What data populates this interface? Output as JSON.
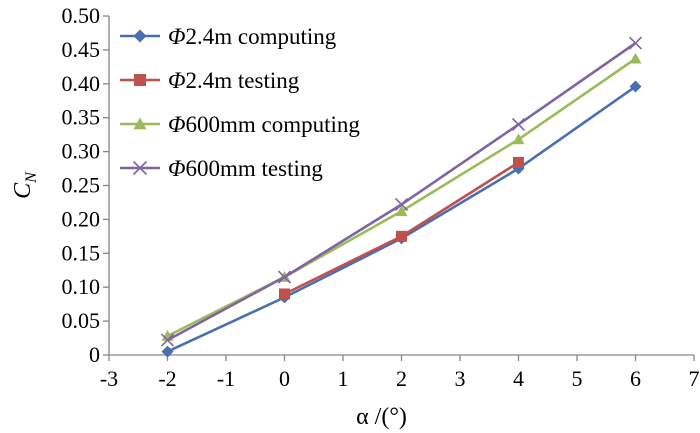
{
  "chart_data": {
    "type": "line",
    "xlabel": "α /(°)",
    "ylabel_main": "C",
    "ylabel_sub": "N",
    "xlim": [
      -3,
      7
    ],
    "ylim": [
      0,
      0.5
    ],
    "x_ticks": [
      "-3",
      "-2",
      "-1",
      "0",
      "1",
      "2",
      "3",
      "4",
      "5",
      "6",
      "7"
    ],
    "y_ticks": [
      "0",
      "0.05",
      "0.10",
      "0.15",
      "0.20",
      "0.25",
      "0.30",
      "0.35",
      "0.40",
      "0.45",
      "0.50"
    ],
    "grid": false,
    "legend_position": "top-left",
    "series": [
      {
        "name": "Φ2.4m computing",
        "name_symbol": "Φ",
        "name_rest": "2.4m computing",
        "color": "#4a6fae",
        "marker": "diamond",
        "x": [
          -2,
          0,
          2,
          4,
          6
        ],
        "y": [
          0.005,
          0.085,
          0.172,
          0.275,
          0.396
        ]
      },
      {
        "name": "Φ2.4m testing",
        "name_symbol": "Φ",
        "name_rest": "2.4m testing",
        "color": "#c0504d",
        "marker": "square",
        "x": [
          0,
          2,
          4
        ],
        "y": [
          0.09,
          0.175,
          0.284
        ]
      },
      {
        "name": "Φ600mm computing",
        "name_symbol": "Φ",
        "name_rest": "600mm computing",
        "color": "#9bbb59",
        "marker": "triangle",
        "x": [
          -2,
          0,
          2,
          4,
          6
        ],
        "y": [
          0.028,
          0.115,
          0.212,
          0.318,
          0.437
        ]
      },
      {
        "name": "Φ600mm testing",
        "name_symbol": "Φ",
        "name_rest": "600mm testing",
        "color": "#8064a2",
        "marker": "x",
        "x": [
          -2,
          0,
          2,
          4,
          6
        ],
        "y": [
          0.022,
          0.115,
          0.222,
          0.34,
          0.46
        ]
      }
    ]
  }
}
